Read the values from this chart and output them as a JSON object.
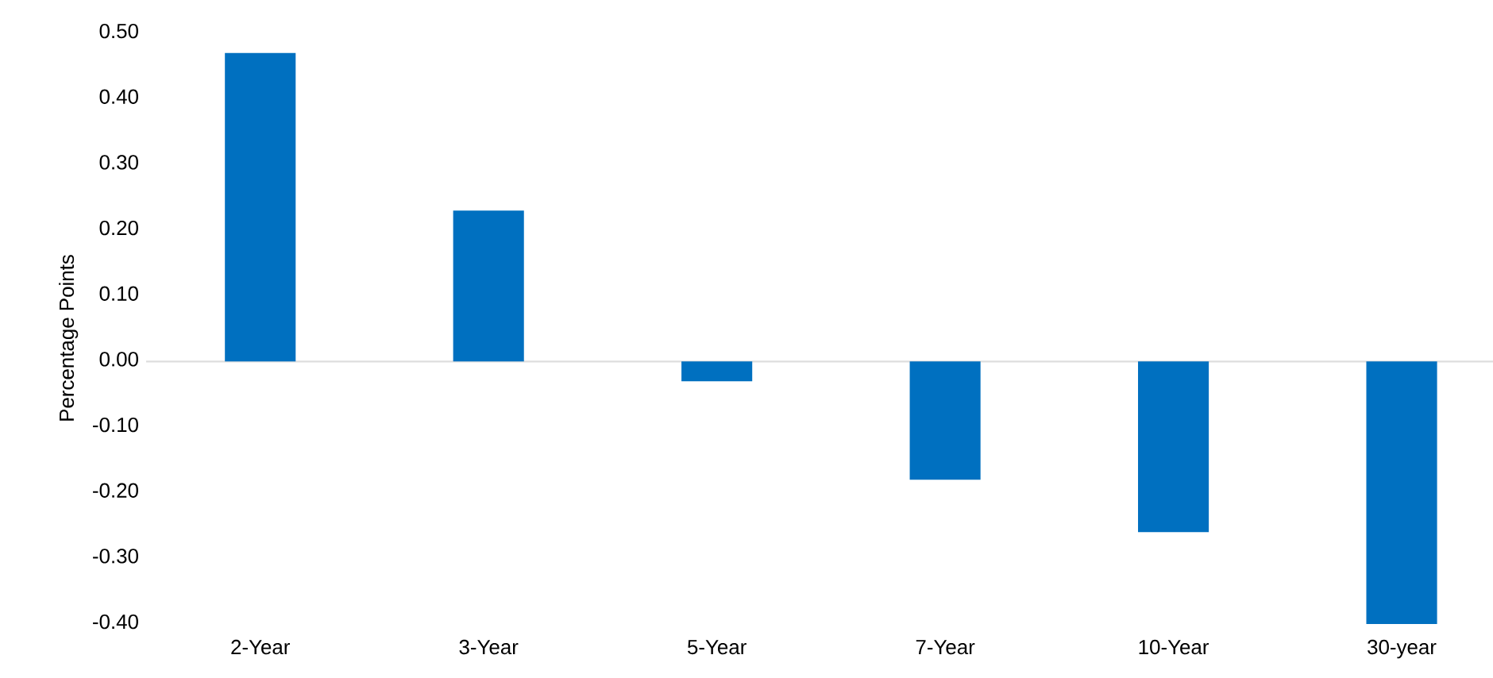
{
  "chart_data": {
    "type": "bar",
    "ylabel": "Percentage Points",
    "categories": [
      "2-Year",
      "3-Year",
      "5-Year",
      "7-Year",
      "10-Year",
      "30-year"
    ],
    "values": [
      0.47,
      0.23,
      -0.03,
      -0.18,
      -0.26,
      -0.4
    ],
    "color": "#0070c0",
    "ylim": [
      -0.4,
      0.5
    ],
    "yticks": [
      {
        "value": -0.4,
        "label": "-0.40"
      },
      {
        "value": -0.3,
        "label": "-0.30"
      },
      {
        "value": -0.2,
        "label": "-0.20"
      },
      {
        "value": -0.1,
        "label": "-0.10"
      },
      {
        "value": 0,
        "label": "0.00"
      },
      {
        "value": 0.1,
        "label": "0.10"
      },
      {
        "value": 0.2,
        "label": "0.20"
      },
      {
        "value": 0.3,
        "label": "0.30"
      },
      {
        "value": 0.4,
        "label": "0.40"
      },
      {
        "value": 0.5,
        "label": "0.50"
      }
    ],
    "relative": false
  }
}
